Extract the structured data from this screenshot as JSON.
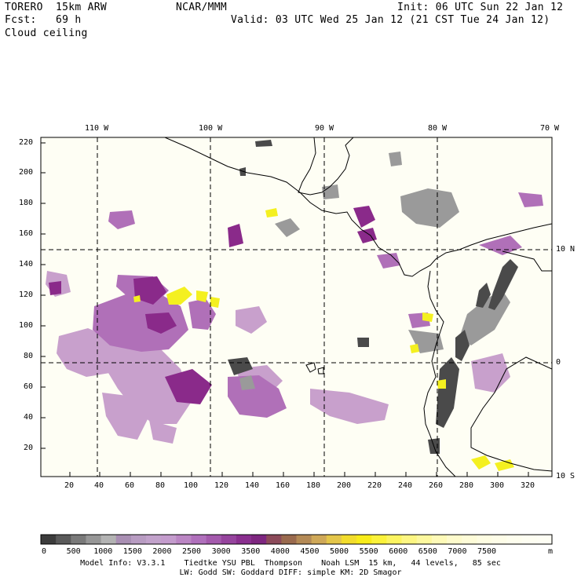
{
  "header": {
    "model": "TORERO  15km ARW",
    "org": "NCAR/MMM",
    "init": "Init: 06 UTC Sun 22 Jan 12",
    "fcst": "Fcst:   69 h",
    "valid": "Valid: 03 UTC Wed 25 Jan 12 (21 CST Tue 24 Jan 12)",
    "field": "Cloud ceiling"
  },
  "map": {
    "top_lon_labels": [
      "110 W",
      "100 W",
      "90 W",
      "80 W",
      "70 W"
    ],
    "right_lat_labels": [
      "10 N",
      "0",
      "10 S"
    ],
    "left_grid_ticks": [
      "220",
      "200",
      "180",
      "160",
      "140",
      "120",
      "100",
      "80",
      "60",
      "40",
      "20"
    ],
    "bottom_grid_ticks": [
      "20",
      "40",
      "60",
      "80",
      "100",
      "120",
      "140",
      "160",
      "180",
      "200",
      "220",
      "240",
      "260",
      "280",
      "300",
      "320"
    ],
    "colors": {
      "background": "#fefef4",
      "low_gray": "#4a4a4a",
      "mid_gray": "#9a9a9a",
      "purple_dark": "#8a2a8a",
      "purple_mid": "#b070b8",
      "purple_light": "#c8a0cc",
      "yellow": "#f4f020"
    }
  },
  "colorbar": {
    "labels": [
      "0",
      "500",
      "1000",
      "1500",
      "2000",
      "2500",
      "3000",
      "3500",
      "4000",
      "4500",
      "5000",
      "5500",
      "6000",
      "6500",
      "7000",
      "7500"
    ],
    "unit": "m",
    "colors": [
      "#3c3c3c",
      "#5a5a5a",
      "#7a7a7a",
      "#979797",
      "#b3b3b3",
      "#a98fb3",
      "#b89cc2",
      "#c2a2cb",
      "#c49ccd",
      "#bb86c4",
      "#b070bc",
      "#a45aad",
      "#96449e",
      "#8a2f8f",
      "#7e2680",
      "#8c4a5a",
      "#9a6a4e",
      "#b48a56",
      "#cfa858",
      "#e4c64a",
      "#f2dc2c",
      "#f8ec1a",
      "#fbf23a",
      "#fcf460",
      "#fdf682",
      "#fdf89e",
      "#fefab8",
      "#fefbcc",
      "#fefcd8",
      "#fefde2",
      "#fefde8",
      "#fefeee",
      "#fefef2",
      "#fefef4"
    ]
  },
  "footer": {
    "line1": "Model Info: V3.3.1    Tiedtke YSU PBL  Thompson    Noah LSM  15 km,   44 levels,   85 sec",
    "line2": "LW: Godd SW: Goddard DIFF: simple KM: 2D Smagor"
  }
}
